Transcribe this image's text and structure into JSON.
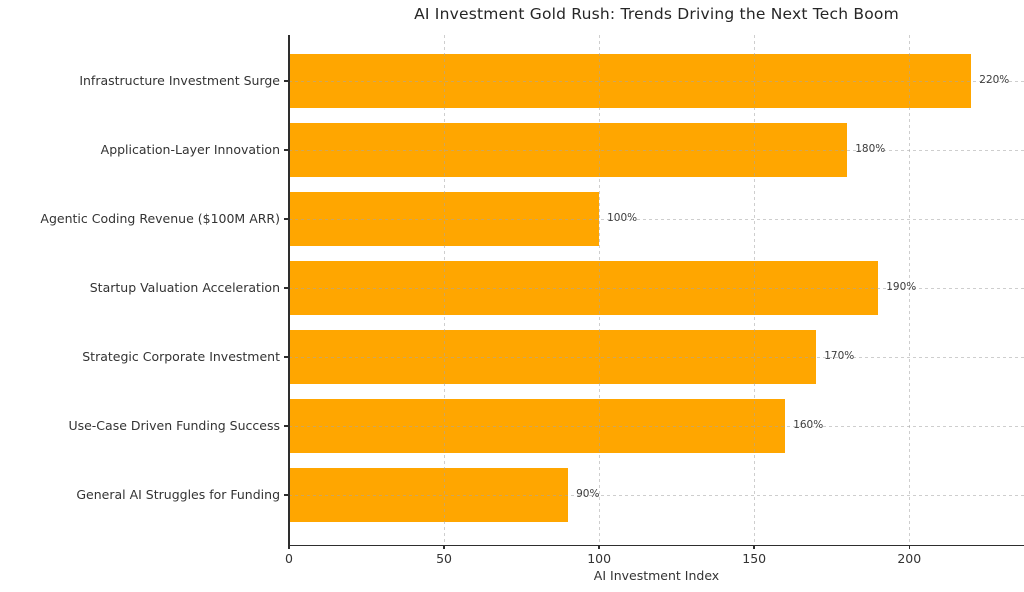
{
  "figure": {
    "background": "#ffffff"
  },
  "chart_data": {
    "type": "bar",
    "orientation": "horizontal",
    "title": "AI Investment Gold Rush: Trends Driving the Next Tech Boom",
    "xlabel": "AI Investment Index",
    "ylabel": "",
    "categories": [
      "Infrastructure Investment Surge",
      "Application-Layer Innovation",
      "Agentic Coding Revenue ($100M ARR)",
      "Startup Valuation Acceleration",
      "Strategic Corporate Investment",
      "Use-Case Driven Funding Success",
      "General AI Struggles for Funding"
    ],
    "values": [
      220,
      180,
      100,
      190,
      170,
      160,
      90
    ],
    "value_labels": [
      "220%",
      "180%",
      "100%",
      "190%",
      "170%",
      "160%",
      "90%"
    ],
    "x_ticks": [
      0,
      50,
      100,
      150,
      200
    ],
    "xlim": [
      0,
      237
    ],
    "grid": "dashed-both-axes",
    "grid_color": "#cfcfcf",
    "legend": "none",
    "bar_color": "#FFA600",
    "text_color": "#333333"
  }
}
